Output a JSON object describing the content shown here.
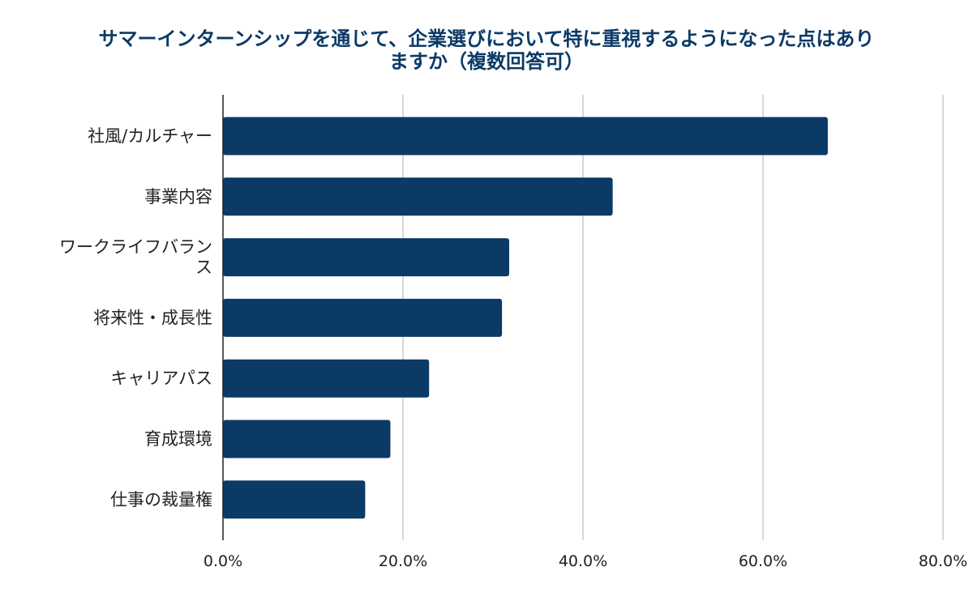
{
  "chart_data": {
    "type": "bar",
    "orientation": "horizontal",
    "title": "サマーインターンシップを通じて、企業選びにおいて特に重視するようになった点はありますか（複数回答可）",
    "categories": [
      "社風/カルチャー",
      "事業内容",
      "ワークライフバランス",
      "将来性・成長性",
      "キャリアパス",
      "育成環境",
      "仕事の裁量権"
    ],
    "category_label_lines": [
      [
        "社風/カルチャー"
      ],
      [
        "事業内容"
      ],
      [
        "ワークライフバラン",
        "ス"
      ],
      [
        "将来性・成長性"
      ],
      [
        "キャリアパス"
      ],
      [
        "育成環境"
      ],
      [
        "仕事の裁量権"
      ]
    ],
    "values": [
      67.2,
      43.3,
      31.8,
      31.0,
      22.9,
      18.6,
      15.8
    ],
    "unit": "%",
    "xlim": [
      0,
      80
    ],
    "x_ticks": [
      0,
      20,
      40,
      60,
      80
    ],
    "x_tick_labels": [
      "0.0%",
      "20.0%",
      "40.0%",
      "60.0%",
      "80.0%"
    ],
    "xlabel": "",
    "ylabel": "",
    "grid": "vertical",
    "legend": "none",
    "colors": {
      "bar": "#0b3a66",
      "title": "#0b3a66",
      "grid": "#cccccc",
      "axis": "#222222"
    }
  }
}
